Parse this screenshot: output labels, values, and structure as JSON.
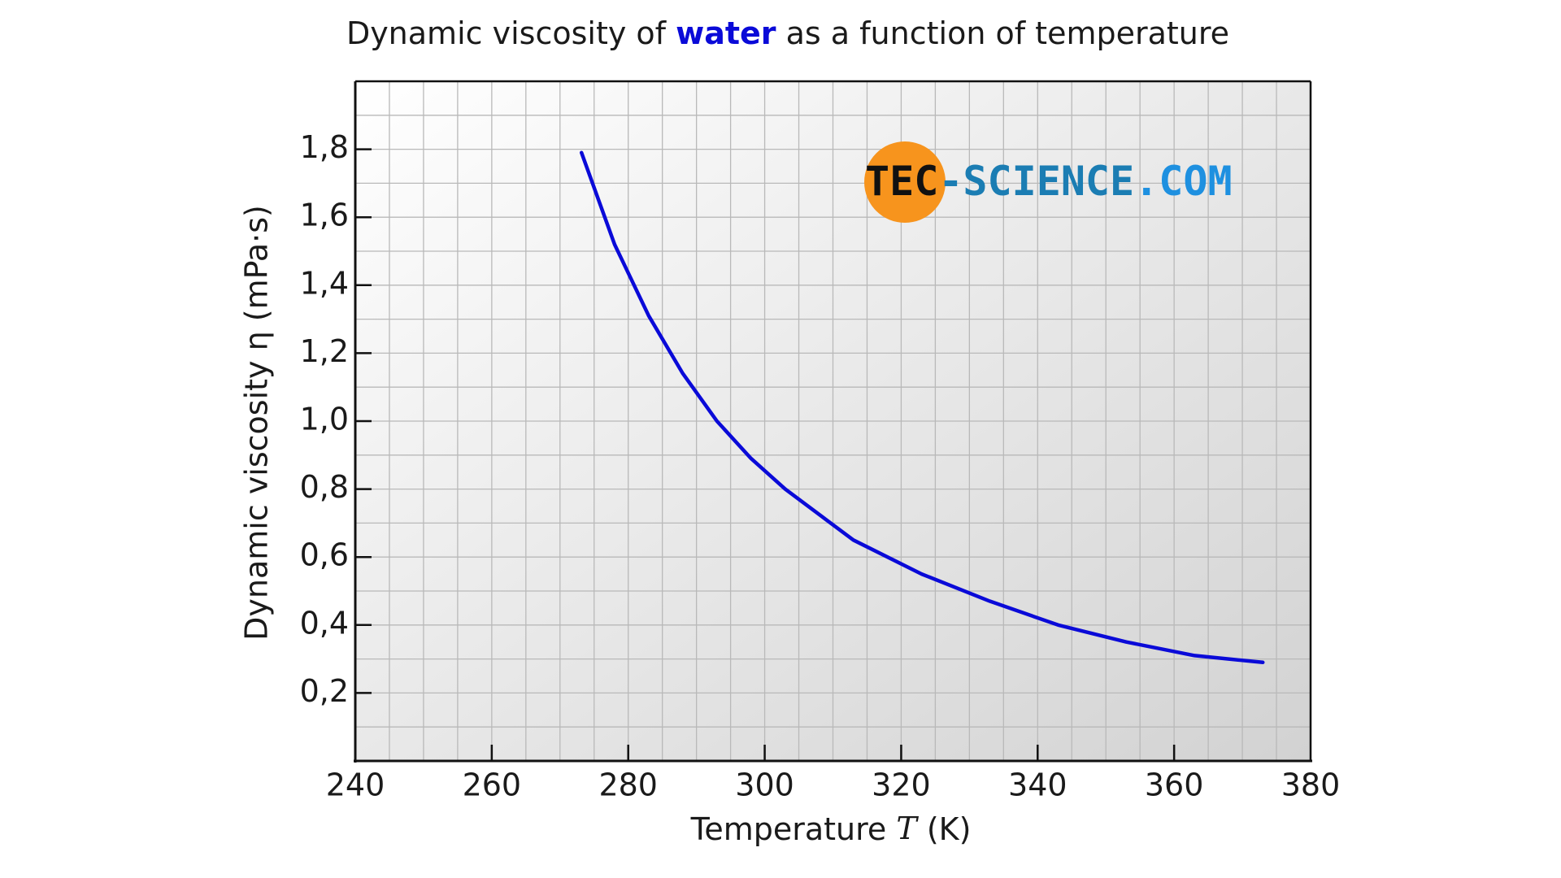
{
  "chart_data": {
    "type": "line",
    "title": [
      "Dynamic viscosity of ",
      "water",
      " as a function of temperature"
    ],
    "x_label": [
      "Temperature ",
      "T",
      " (K)"
    ],
    "y_label": "Dynamic viscosity η (mPa·s)",
    "logo": [
      "TEC",
      "-SCIENCE",
      ".COM"
    ],
    "x": [
      273.15,
      278,
      283,
      288,
      293,
      298,
      303,
      313,
      323,
      333,
      343,
      353,
      363,
      373
    ],
    "series": [
      {
        "name": "water",
        "color": "#0a0ad8",
        "values": [
          1.79,
          1.52,
          1.31,
          1.14,
          1.0,
          0.89,
          0.8,
          0.65,
          0.55,
          0.47,
          0.4,
          0.35,
          0.31,
          0.29
        ]
      }
    ],
    "xlim": [
      240,
      380
    ],
    "ylim": [
      0,
      2
    ],
    "xticks": [
      240,
      260,
      280,
      300,
      320,
      340,
      360,
      380
    ],
    "yticks": [
      {
        "value": 0.2,
        "label": "0,2"
      },
      {
        "value": 0.4,
        "label": "0,4"
      },
      {
        "value": 0.6,
        "label": "0,6"
      },
      {
        "value": 0.8,
        "label": "0,8"
      },
      {
        "value": 1,
        "label": "1,0"
      },
      {
        "value": 1.2,
        "label": "1,2"
      },
      {
        "value": 1.4,
        "label": "1,4"
      },
      {
        "value": 1.6,
        "label": "1,6"
      },
      {
        "value": 1.8,
        "label": "1,8"
      }
    ],
    "xgrid": [
      245,
      250,
      255,
      260,
      265,
      270,
      275,
      280,
      285,
      290,
      295,
      300,
      305,
      310,
      315,
      320,
      325,
      330,
      335,
      340,
      345,
      350,
      355,
      360,
      365,
      370,
      375
    ],
    "ygrid": [
      0.1,
      0.2,
      0.3,
      0.4,
      0.5,
      0.6,
      0.7,
      0.8,
      0.9,
      1.0,
      1.1,
      1.2,
      1.3,
      1.4,
      1.5,
      1.6,
      1.7,
      1.8,
      1.9
    ],
    "grid": true
  }
}
